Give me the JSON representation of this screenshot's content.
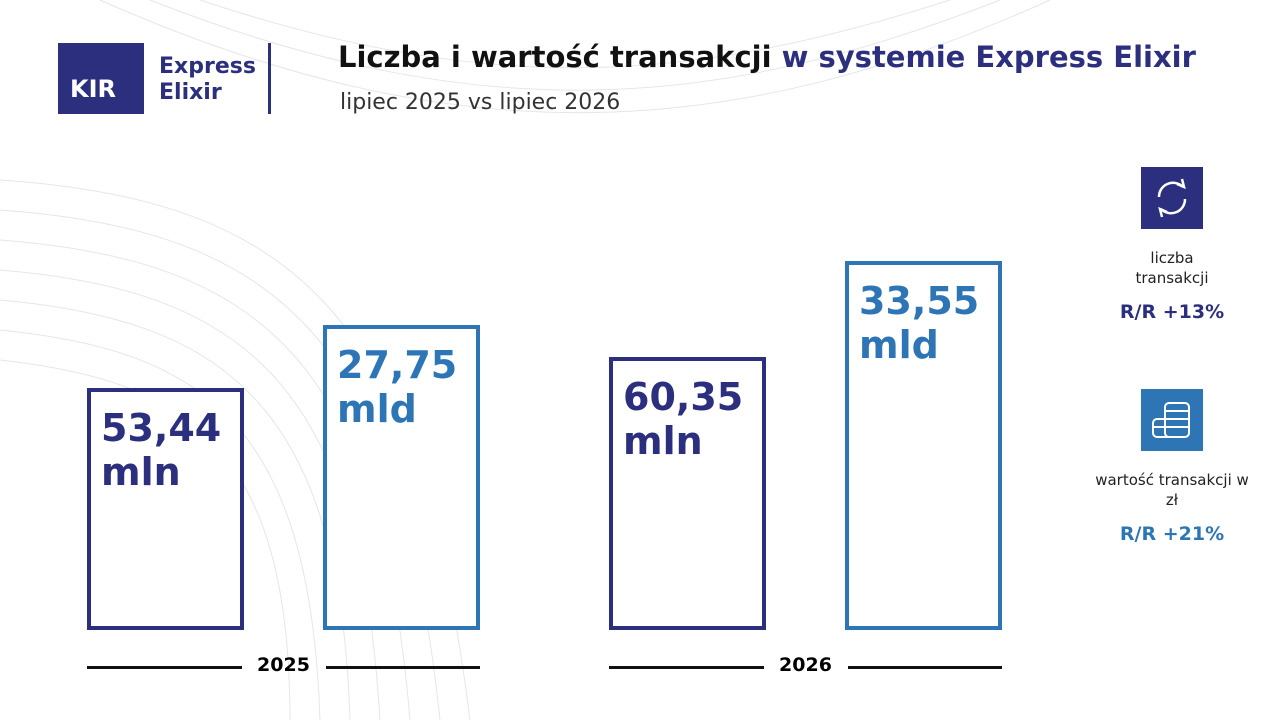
{
  "logo": {
    "mark": "KIR",
    "line1": "Express",
    "line2": "Elixir"
  },
  "chart_data": {
    "type": "bar",
    "title": [
      "Liczba i wartość transakcji",
      "w systemie Express Elixir"
    ],
    "subtitle": "lipiec 2025 vs lipiec 2026",
    "categories": [
      "2025",
      "2026"
    ],
    "series": [
      {
        "name": "liczba transakcji",
        "color": "#2b2f7e",
        "values": [
          53.44,
          60.35
        ],
        "value_labels": [
          "53,44 mln",
          "60,35 mln"
        ],
        "change": "R/R +13%"
      },
      {
        "name": "wartość transakcji w zł",
        "color": "#2e75b6",
        "values": [
          27.75,
          33.55
        ],
        "value_labels": [
          "27,75 mld",
          "33,55 mld"
        ],
        "change": "R/R +21%"
      }
    ]
  }
}
